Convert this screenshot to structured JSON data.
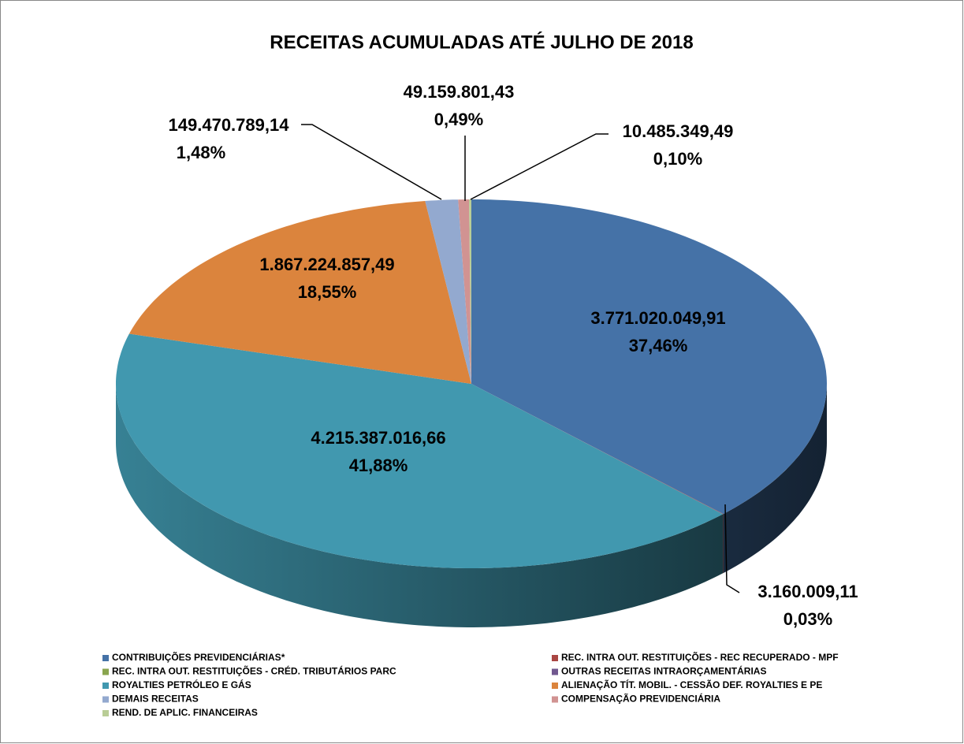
{
  "chart_data": {
    "type": "pie3d",
    "title": "RECEITAS ACUMULADAS ATÉ JULHO DE 2018",
    "categories": [
      "CONTRIBUIÇÕES PREVIDENCIÁRIAS*",
      "REC. INTRA OUT. RESTITUIÇÕES - REC RECUPERADO - MPF",
      "REC. INTRA OUT. RESTITUIÇÕES - CRÉD. TRIBUTÁRIOS PARC",
      "OUTRAS RECEITAS INTRAORÇAMENTÁRIAS",
      "ROYALTIES PETRÓLEO E GÁS",
      "ALIENAÇÃO TÍT. MOBIL. - CESSÃO DEF. ROYALTIES E PE",
      "DEMAIS RECEITAS",
      "COMPENSAÇÃO PREVIDENCIÁRIA",
      "REND. DE APLIC. FINANCEIRAS"
    ],
    "values": [
      3771020049.91,
      3160009.11,
      0,
      0,
      4215387016.66,
      1867224857.49,
      149470789.14,
      49159801.43,
      10485349.49
    ],
    "value_labels": [
      "3.771.020.049,91",
      "3.160.009,11",
      null,
      null,
      "4.215.387.016,66",
      "1.867.224.857,49",
      "149.470.789,14",
      "49.159.801,43",
      "10.485.349,49"
    ],
    "percentages": [
      37.46,
      0.03,
      null,
      null,
      41.88,
      18.55,
      1.48,
      0.49,
      0.1
    ],
    "percentage_labels": [
      "37,46%",
      "0,03%",
      null,
      null,
      "41,88%",
      "18,55%",
      "1,48%",
      "0,49%",
      "0,10%"
    ],
    "colors": [
      "#4572a7",
      "#aa4643",
      "#89a54e",
      "#71588f",
      "#4198af",
      "#db843d",
      "#93a9cf",
      "#d19392",
      "#b9cd96"
    ]
  }
}
